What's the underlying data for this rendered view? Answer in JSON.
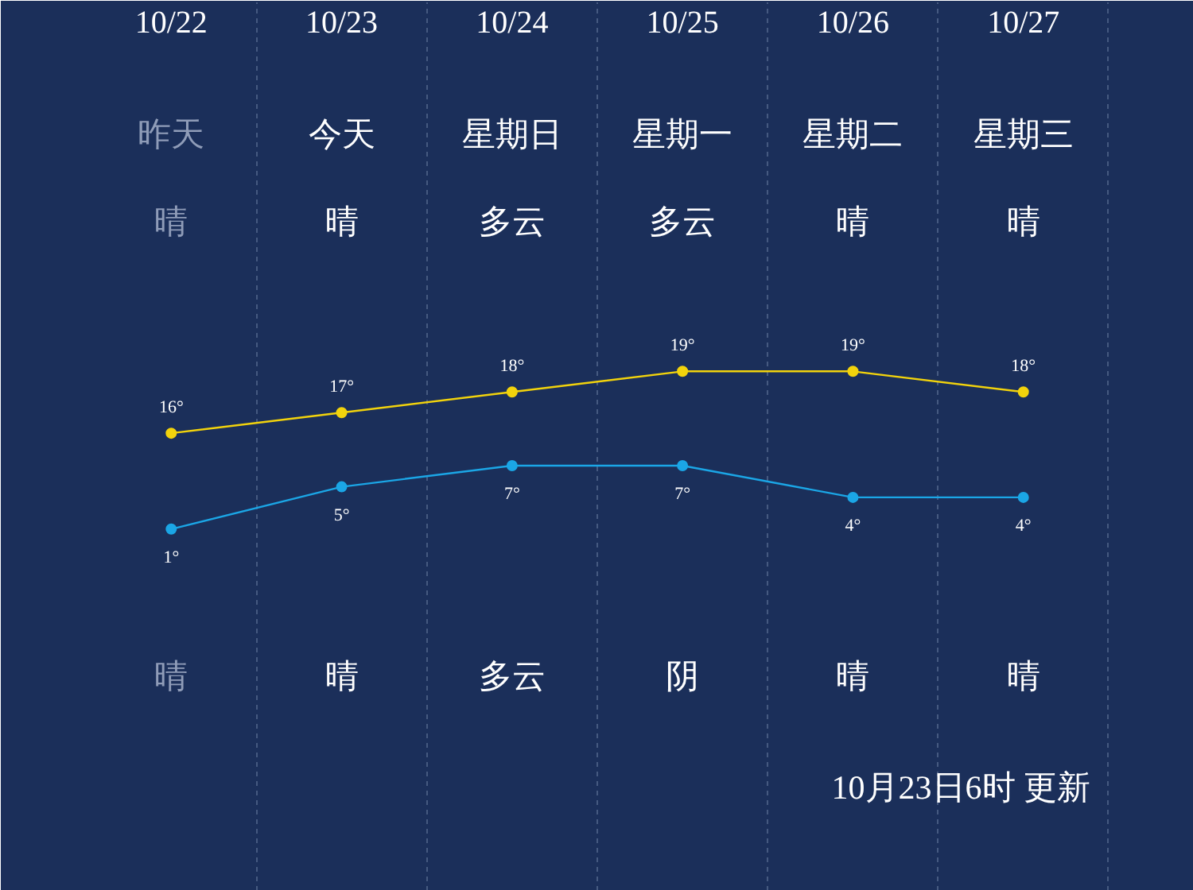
{
  "chart_data": {
    "type": "line",
    "categories": [
      "10/22",
      "10/23",
      "10/24",
      "10/25",
      "10/26",
      "10/27"
    ],
    "series": [
      {
        "color": "#f2d30c",
        "values": [
          16,
          17,
          18,
          19,
          19,
          18
        ],
        "value_labels": [
          "16°",
          "17°",
          "18°",
          "19°",
          "19°",
          "18°"
        ]
      },
      {
        "color": "#1ba6e6",
        "values": [
          1,
          5,
          7,
          7,
          4,
          4
        ],
        "axis": "y2",
        "value_labels": [
          "1°",
          "5°",
          "7°",
          "7°",
          "4°",
          "4°"
        ]
      }
    ],
    "ylim": [
      -6.2,
      36.9
    ],
    "y2lim": [
      -33.2,
      50.8
    ],
    "tick_labels": "x",
    "grid": "x",
    "marker": "circle",
    "line_style": "solid",
    "annotations": [
      "昨天",
      "今天",
      "星期日",
      "星期一",
      "星期二",
      "星期三",
      "晴",
      "晴",
      "多云",
      "多云",
      "晴",
      "晴",
      "晴",
      "晴",
      "多云",
      "阴",
      "晴",
      "晴",
      "10月23日6时 更新"
    ]
  }
}
